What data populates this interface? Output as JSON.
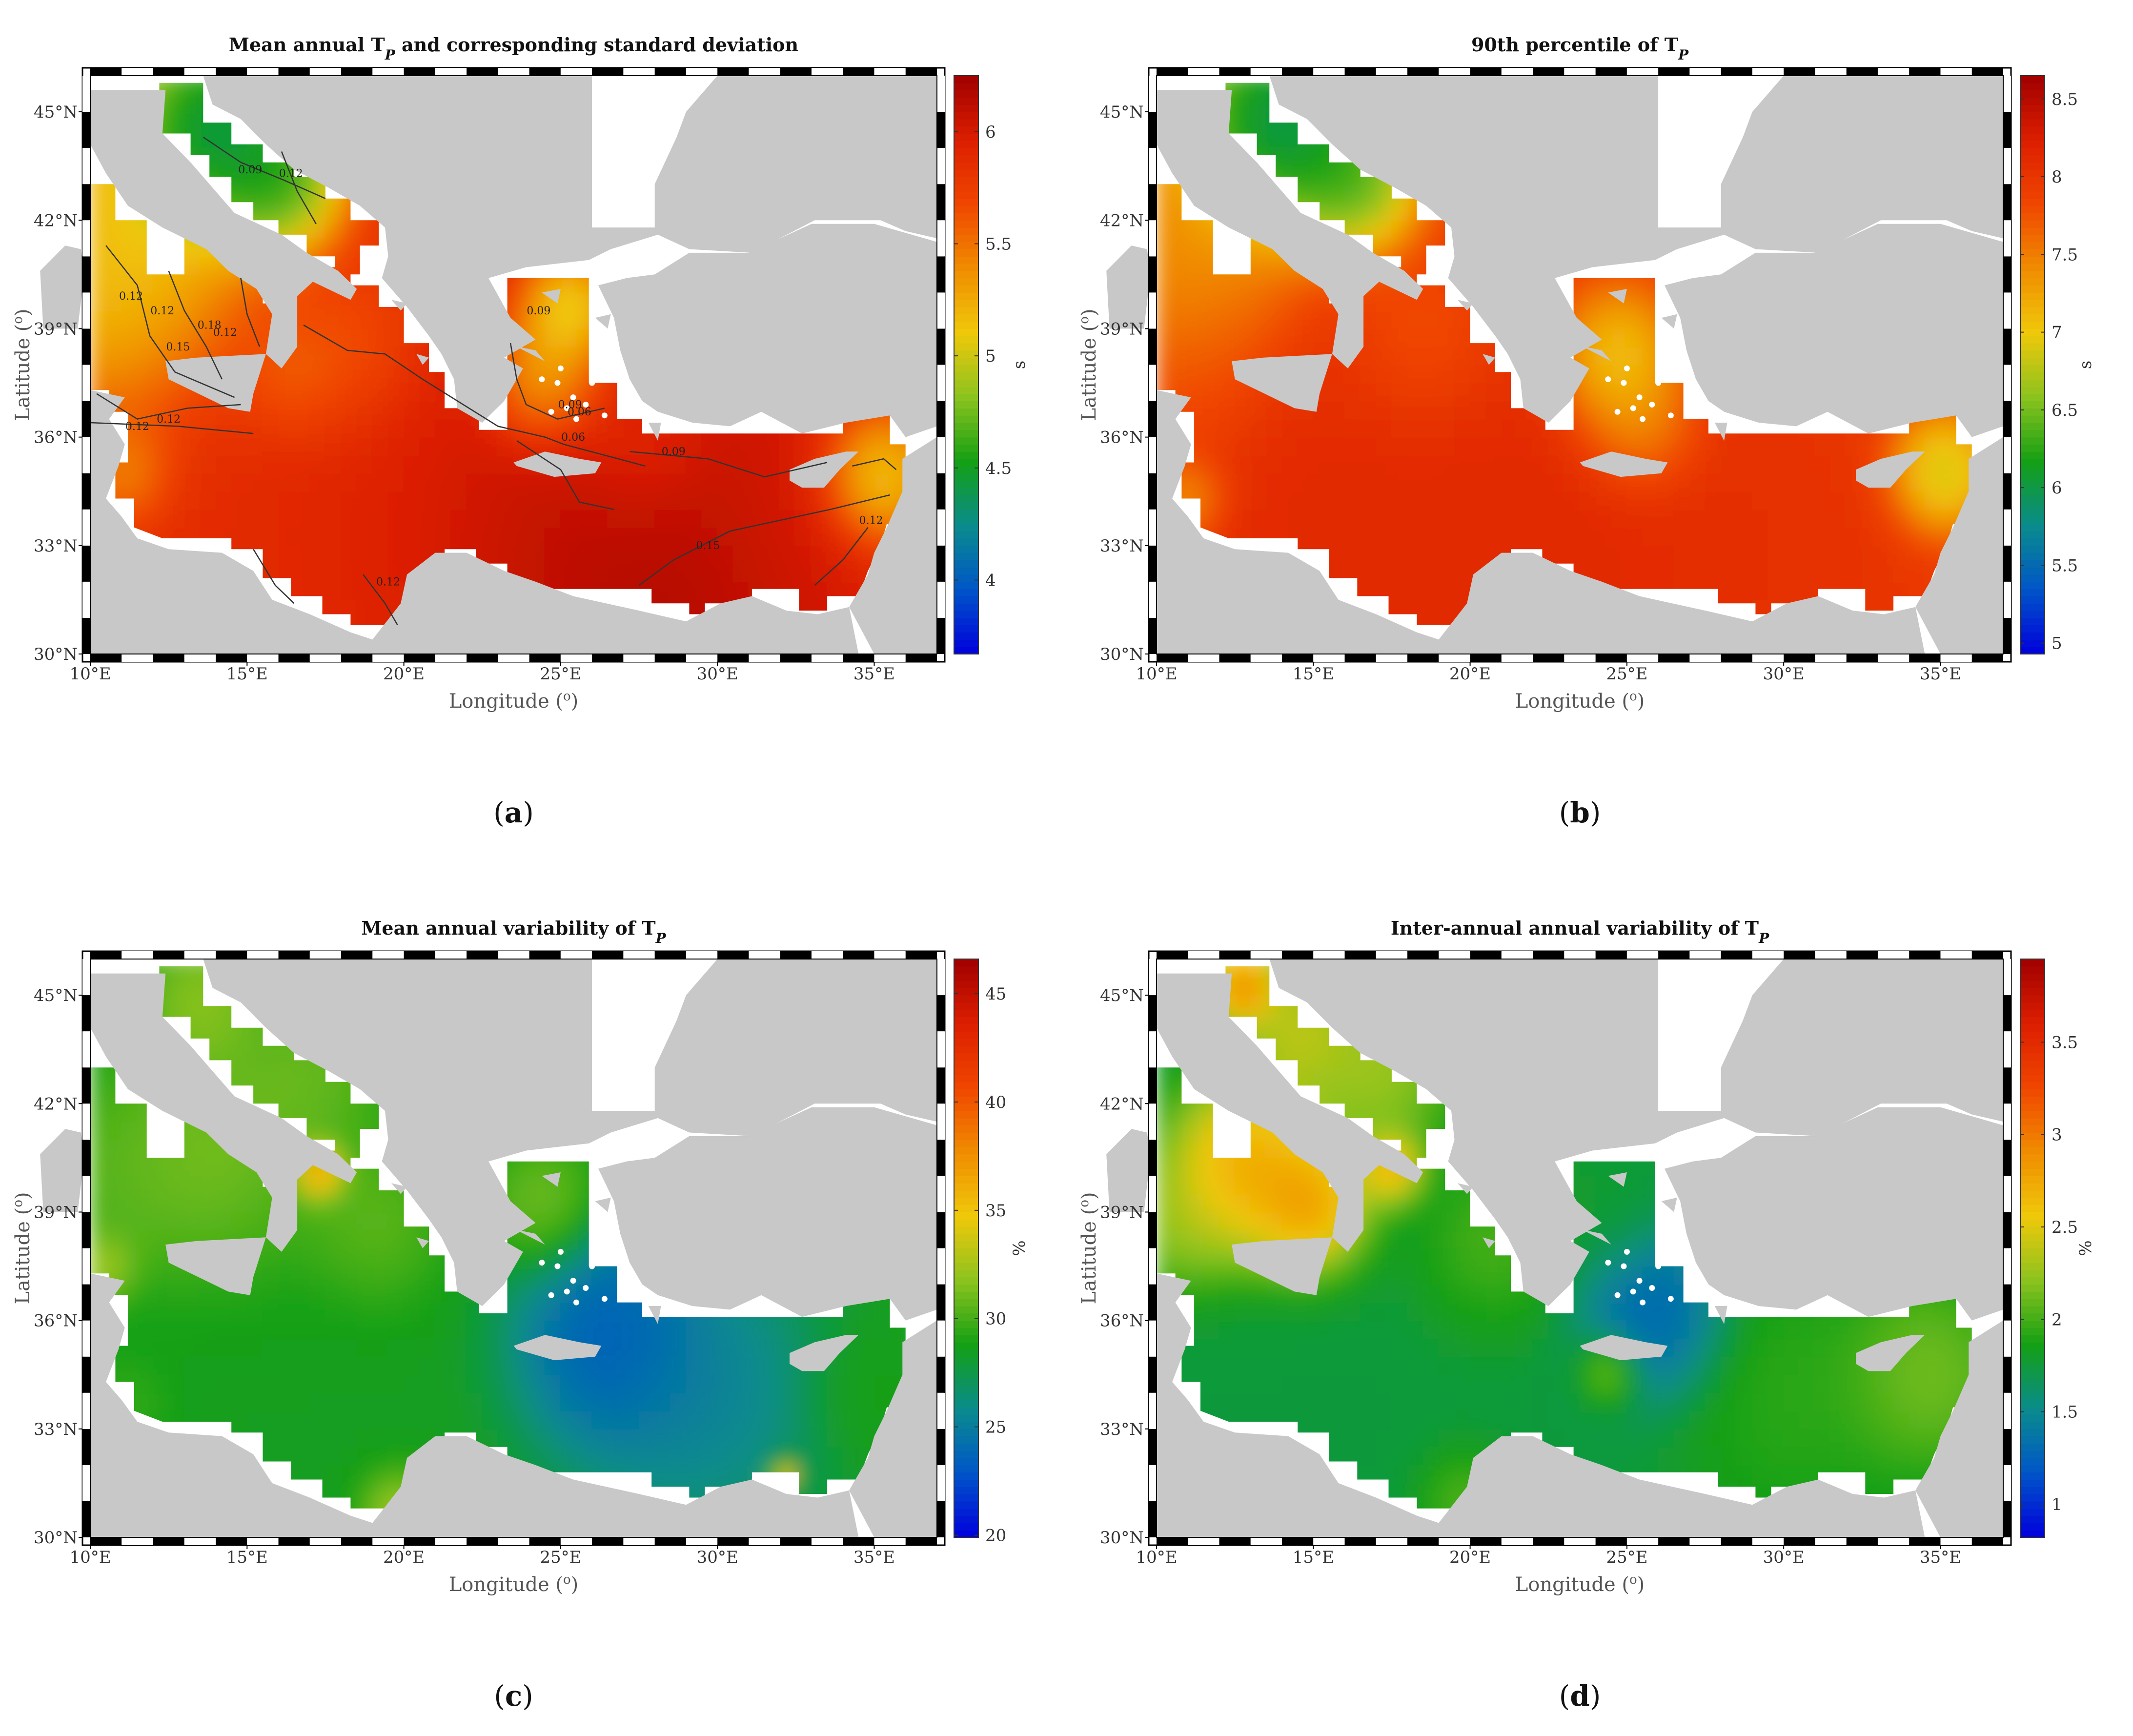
{
  "figure": {
    "panels": [
      {
        "id": "a",
        "title": "Mean annual  T",
        "title_sub": "P",
        "title_tail": " and corresponding standard deviation",
        "caption": "(a)",
        "caption_letter": "a",
        "cbar_unit": "s",
        "cbar_ticks": [
          "4",
          "4.5",
          "5",
          "5.5",
          "6"
        ],
        "cbar_tick_values": [
          4,
          4.5,
          5,
          5.5,
          6
        ],
        "cbar_range": [
          3.67,
          6.25
        ],
        "contour_labels": [
          "0.09",
          "0.12",
          "0.12",
          "0.12",
          "0.15",
          "0.18",
          "0.12",
          "0.12",
          "0.12",
          "0.09",
          "0.09",
          "0.06",
          "0.06",
          "0.09",
          "0.15",
          "0.12",
          "0.12"
        ]
      },
      {
        "id": "b",
        "title": "90th percentile of  T",
        "title_sub": "P",
        "title_tail": "",
        "caption": "(b)",
        "caption_letter": "b",
        "cbar_unit": "s",
        "cbar_ticks": [
          "5",
          "5.5",
          "6",
          "6.5",
          "7",
          "7.5",
          "8",
          "8.5"
        ],
        "cbar_tick_values": [
          5,
          5.5,
          6,
          6.5,
          7,
          7.5,
          8,
          8.5
        ],
        "cbar_range": [
          4.93,
          8.65
        ],
        "contour_labels": []
      },
      {
        "id": "c",
        "title": "Mean annual variability of  T",
        "title_sub": "P",
        "title_tail": "",
        "caption": "(c)",
        "caption_letter": "c",
        "cbar_unit": "%",
        "cbar_ticks": [
          "20",
          "25",
          "30",
          "35",
          "40",
          "45"
        ],
        "cbar_tick_values": [
          20,
          25,
          30,
          35,
          40,
          45
        ],
        "cbar_range": [
          19.9,
          46.6
        ],
        "contour_labels": []
      },
      {
        "id": "d",
        "title": "Inter-annual annual variability of  T",
        "title_sub": "P",
        "title_tail": "",
        "caption": "(d)",
        "caption_letter": "d",
        "cbar_unit": "%",
        "cbar_ticks": [
          "1",
          "1.5",
          "2",
          "2.5",
          "3",
          "3.5"
        ],
        "cbar_tick_values": [
          1,
          1.5,
          2,
          2.5,
          3,
          3.5
        ],
        "cbar_range": [
          0.82,
          3.95
        ],
        "contour_labels": []
      }
    ],
    "x_axis_label": "Longitude (",
    "y_axis_label": "Latitude (",
    "degree_sup": "o",
    "degree_close": ")",
    "lon_ticks": [
      "10°E",
      "15°E",
      "20°E",
      "25°E",
      "30°E",
      "35°E"
    ],
    "lon_values": [
      10,
      15,
      20,
      25,
      30,
      35
    ],
    "lat_ticks": [
      "30°N",
      "33°N",
      "36°N",
      "39°N",
      "42°N",
      "45°N"
    ],
    "lat_values": [
      30,
      33,
      36,
      39,
      42,
      45
    ],
    "lon_range": [
      10,
      37
    ],
    "lat_range": [
      30,
      46
    ],
    "colors": {
      "land": "#c8c8c8",
      "no_data": "#ffffff",
      "frame_dark": "#000000",
      "frame_light": "#ffffff",
      "contour": "#333333",
      "colormap": [
        "#0000dc",
        "#0055c8",
        "#0a8c8c",
        "#14a014",
        "#8cc31e",
        "#f0c80a",
        "#f08c00",
        "#f04600",
        "#dc1e00",
        "#a00000"
      ]
    }
  }
}
